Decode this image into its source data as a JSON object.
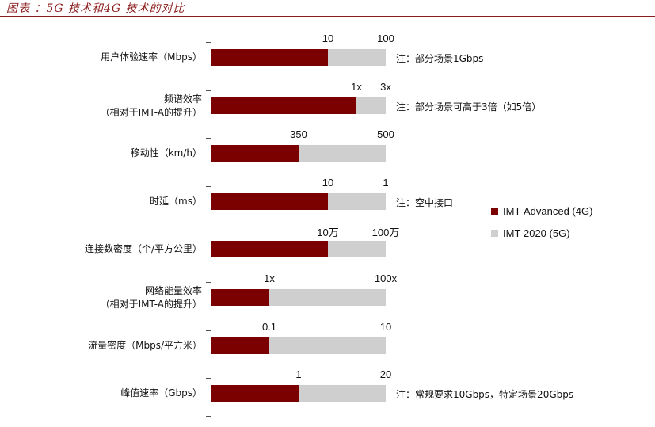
{
  "figure": {
    "title": "图表 ：5G 技术和4G 技术的对比"
  },
  "colors": {
    "series_4g": "#7b0000",
    "series_5g": "#cfcfcf",
    "title": "#8b1a1a"
  },
  "legend": [
    {
      "label": "IMT-Advanced (4G)",
      "color": "#7b0000"
    },
    {
      "label": "IMT-2020 (5G)",
      "color": "#cfcfcf"
    }
  ],
  "chart_data": {
    "type": "bar",
    "orientation": "horizontal",
    "stacked": true,
    "legend_position": "right",
    "categories": [
      {
        "label_lines": [
          "用户体验速率（Mbps）"
        ],
        "label_4g": "10",
        "label_5g": "100",
        "note": "注：部分场景1Gbps"
      },
      {
        "label_lines": [
          "频谱效率",
          "（相对于IMT-A的提升）"
        ],
        "label_4g": "1x",
        "label_5g": "3x",
        "note": "注：部分场景可高于3倍（如5倍）"
      },
      {
        "label_lines": [
          "移动性（km/h）"
        ],
        "label_4g": "350",
        "label_5g": "500",
        "note": ""
      },
      {
        "label_lines": [
          "时延（ms）"
        ],
        "label_4g": "10",
        "label_5g": "1",
        "note": "注：空中接口"
      },
      {
        "label_lines": [
          "连接数密度（个/平方公里）"
        ],
        "label_4g": "10万",
        "label_5g": "100万",
        "note": ""
      },
      {
        "label_lines": [
          "网络能量效率",
          "（相对于IMT-A的提升）"
        ],
        "label_4g": "1x",
        "label_5g": "100x",
        "note": ""
      },
      {
        "label_lines": [
          "流量密度（Mbps/平方米）"
        ],
        "label_4g": "0.1",
        "label_5g": "10",
        "note": ""
      },
      {
        "label_lines": [
          "峰值速率（Gbps）"
        ],
        "label_4g": "1",
        "label_5g": "20",
        "note": "注：常规要求10Gbps，特定场景20Gbps"
      }
    ],
    "series": [
      {
        "name": "IMT-Advanced (4G)",
        "values_relative": [
          0.67,
          0.83,
          0.5,
          0.67,
          0.67,
          0.33,
          0.33,
          0.5
        ]
      },
      {
        "name": "IMT-2020 (5G)",
        "values_relative": [
          1,
          1,
          1,
          1,
          1,
          1,
          1,
          1
        ]
      }
    ]
  }
}
